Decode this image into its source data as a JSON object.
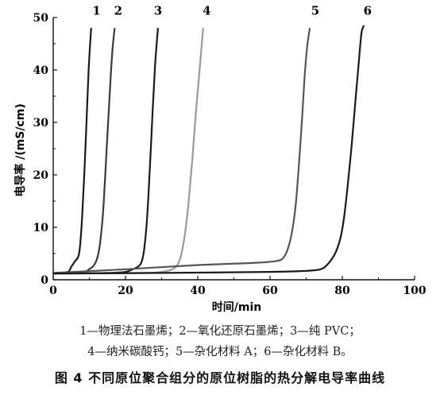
{
  "chart_data": {
    "type": "line",
    "xlabel": "时间/min",
    "ylabel": "电导率 /(mS/cm)",
    "xlim": [
      0,
      100
    ],
    "ylim": [
      0,
      50
    ],
    "x_ticks": [
      "0",
      "20",
      "40",
      "60",
      "80",
      "100"
    ],
    "y_ticks": [
      "0",
      "10",
      "20",
      "30",
      "40",
      "50"
    ],
    "grid": false,
    "legend": "below",
    "series": [
      {
        "name": "1",
        "color": "#1a1a1a",
        "label_at": [
          12,
          50.5
        ],
        "points": [
          [
            0,
            1.2
          ],
          [
            4,
            1.5
          ],
          [
            5,
            2.5
          ],
          [
            6,
            3.5
          ],
          [
            7,
            4.5
          ],
          [
            7.5,
            7
          ],
          [
            8,
            12
          ],
          [
            8.6,
            20
          ],
          [
            9.2,
            30
          ],
          [
            9.8,
            40
          ],
          [
            10.5,
            48
          ]
        ]
      },
      {
        "name": "2",
        "color": "#3a3a3a",
        "label_at": [
          18,
          50.5
        ],
        "points": [
          [
            0,
            1.2
          ],
          [
            8,
            1.5
          ],
          [
            10,
            2
          ],
          [
            11.5,
            3
          ],
          [
            12.5,
            5
          ],
          [
            13.3,
            9
          ],
          [
            14,
            15
          ],
          [
            14.8,
            25
          ],
          [
            15.6,
            35
          ],
          [
            16.3,
            43
          ],
          [
            17,
            48
          ]
        ]
      },
      {
        "name": "3",
        "color": "#1a1a1a",
        "label_at": [
          29,
          50.5
        ],
        "points": [
          [
            0,
            1.2
          ],
          [
            15,
            1.3
          ],
          [
            20,
            1.5
          ],
          [
            22,
            2
          ],
          [
            23.5,
            2.5
          ],
          [
            24.5,
            3.5
          ],
          [
            25.2,
            6
          ],
          [
            26,
            12
          ],
          [
            26.8,
            22
          ],
          [
            27.5,
            32
          ],
          [
            28.2,
            41
          ],
          [
            29,
            48
          ]
        ]
      },
      {
        "name": "4",
        "color": "#9a9a9a",
        "label_at": [
          42.5,
          50.5
        ],
        "points": [
          [
            0,
            1.2
          ],
          [
            25,
            1.3
          ],
          [
            30,
            1.5
          ],
          [
            33,
            2
          ],
          [
            34.5,
            3
          ],
          [
            35.5,
            5
          ],
          [
            36.5,
            9
          ],
          [
            37.5,
            15
          ],
          [
            38.5,
            23
          ],
          [
            39.5,
            32
          ],
          [
            40.5,
            40
          ],
          [
            41.5,
            48
          ]
        ]
      },
      {
        "name": "5",
        "color": "#555555",
        "label_at": [
          72.5,
          50.5
        ],
        "points": [
          [
            0,
            1.3
          ],
          [
            20,
            2
          ],
          [
            40,
            2.8
          ],
          [
            55,
            3.2
          ],
          [
            62,
            3.6
          ],
          [
            64,
            4.5
          ],
          [
            65.2,
            6.5
          ],
          [
            66.3,
            10
          ],
          [
            67.2,
            15
          ],
          [
            68,
            22
          ],
          [
            68.8,
            30
          ],
          [
            69.5,
            38
          ],
          [
            70.2,
            44
          ],
          [
            71,
            48
          ]
        ]
      },
      {
        "name": "6",
        "color": "#1a1a1a",
        "label_at": [
          87,
          50.5
        ],
        "points": [
          [
            0,
            1.2
          ],
          [
            30,
            1.3
          ],
          [
            60,
            1.5
          ],
          [
            70,
            1.7
          ],
          [
            74,
            2
          ],
          [
            76,
            3
          ],
          [
            78,
            5
          ],
          [
            79.5,
            8
          ],
          [
            80.5,
            12
          ],
          [
            81.5,
            18
          ],
          [
            82.5,
            25
          ],
          [
            83.5,
            33
          ],
          [
            84.5,
            41
          ],
          [
            85.3,
            47
          ],
          [
            86,
            48.5
          ]
        ]
      }
    ]
  },
  "legend_text": {
    "line1": "1—物理法石墨烯；2—氧化还原石墨烯；3—纯 PVC；",
    "line2": "4—纳米碳酸钙；5—杂化材料 A；6—杂化材料 B。"
  },
  "figure_caption": "图 4    不同原位聚合组分的原位树脂的热分解电导率曲线"
}
